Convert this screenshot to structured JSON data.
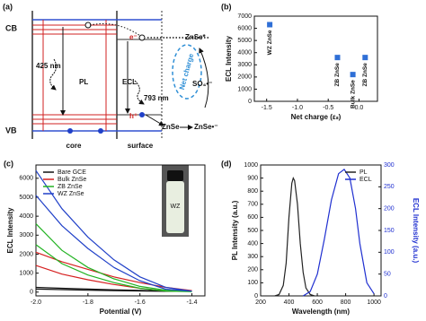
{
  "diagram": {
    "panel_label": "(a)",
    "cb": "CB",
    "vb": "VB",
    "pl_wavelength": "425 nm",
    "pl": "PL",
    "ecl": "ECL",
    "ecl_wavelength": "793 nm",
    "net_charge": "Net charge",
    "electron": "e⁻",
    "hole": "h⁺",
    "excited": "ZnSe*",
    "sulfate": "SO₄•⁻",
    "znse": "ZnSe",
    "reduced": "ZnSe•⁻",
    "core": "core",
    "surface": "surface"
  },
  "chart_data": [
    {
      "type": "scatter",
      "panel_label": "(b)",
      "x_label": "Net charge (εₛ)",
      "y_label": "ECL Intensity",
      "x": [
        -1.45,
        -0.35,
        -0.1,
        0.1
      ],
      "values": [
        6300,
        3600,
        2200,
        3600
      ],
      "point_labels": [
        "WZ ZnSe",
        "ZB ZnSe",
        "Bulk ZnSe",
        "ZB ZnSe"
      ],
      "color": "#2f6fd6",
      "xlim": [
        -1.7,
        0.3
      ],
      "xticks": [
        -1.5,
        {
          "value": -1,
          "label": "-1.0"
        },
        -0.5,
        {
          "value": 0,
          "label": "0.0"
        }
      ],
      "ylim": [
        0,
        7000
      ],
      "yticks": [
        0,
        1000,
        2000,
        3000,
        4000,
        5000,
        6000,
        7000
      ]
    },
    {
      "type": "line",
      "panel_label": "(c)",
      "x_label": "Potential (V)",
      "y_label": "ECL Intensity",
      "inset_label": "WZ",
      "x": [
        -2.0,
        -1.9,
        -1.8,
        -1.7,
        -1.6,
        -1.5,
        -1.4,
        -1.5,
        -1.6,
        -1.7,
        -1.8,
        -1.9,
        -2.0
      ],
      "series": [
        {
          "name": "Bare GCE",
          "color": "#111111",
          "values": [
            250,
            200,
            160,
            120,
            90,
            60,
            40,
            40,
            60,
            80,
            100,
            130,
            160
          ]
        },
        {
          "name": "Bulk ZnSe",
          "color": "#d62020",
          "values": [
            2100,
            1600,
            1200,
            800,
            500,
            250,
            80,
            60,
            200,
            400,
            650,
            950,
            1400
          ]
        },
        {
          "name": "ZB ZnSe",
          "color": "#22b322",
          "values": [
            3600,
            2200,
            1300,
            700,
            300,
            100,
            20,
            50,
            200,
            500,
            900,
            1500,
            2500
          ]
        },
        {
          "name": "WZ ZnSe",
          "color": "#2040c8",
          "values": [
            6400,
            4400,
            2900,
            1700,
            800,
            250,
            50,
            150,
            600,
            1300,
            2300,
            3500,
            5100
          ]
        }
      ],
      "legend": "top-left",
      "xlim": [
        -2.0,
        -1.35
      ],
      "xticks": [
        {
          "value": -2,
          "label": "-2.0"
        },
        -1.8,
        -1.6,
        -1.4
      ],
      "ylim": [
        -200,
        6700
      ],
      "yticks": [
        0,
        1000,
        2000,
        3000,
        4000,
        5000,
        6000
      ]
    },
    {
      "type": "line",
      "panel_label": "(d)",
      "x_label": "Wavelength (nm)",
      "y_label": "PL Intensity (a.u.)",
      "y2_label": "ECL Intensity (a.u.)",
      "series": [
        {
          "name": "PL",
          "color": "#222222",
          "x": [
            300,
            330,
            360,
            380,
            400,
            420,
            430,
            440,
            460,
            480,
            500,
            520,
            550,
            580
          ],
          "values": [
            0,
            10,
            80,
            250,
            600,
            860,
            900,
            880,
            700,
            400,
            180,
            60,
            10,
            0
          ]
        },
        {
          "name": "ECL",
          "color": "#1f2fd0",
          "axis": "y2",
          "x": [
            500,
            550,
            600,
            650,
            700,
            750,
            790,
            830,
            870,
            900,
            950,
            1000
          ],
          "values": [
            0,
            10,
            50,
            130,
            220,
            280,
            290,
            270,
            200,
            120,
            30,
            5
          ]
        }
      ],
      "legend": "top-right",
      "xlim": [
        200,
        1050
      ],
      "xticks": [
        200,
        400,
        600,
        800,
        1000
      ],
      "ylim": [
        0,
        1000
      ],
      "yticks": [
        0,
        100,
        200,
        300,
        400,
        500,
        600,
        700,
        800,
        900,
        1000
      ],
      "y2lim": [
        0,
        300
      ],
      "y2ticks": [
        0,
        50,
        100,
        150,
        200,
        250,
        300
      ]
    }
  ]
}
